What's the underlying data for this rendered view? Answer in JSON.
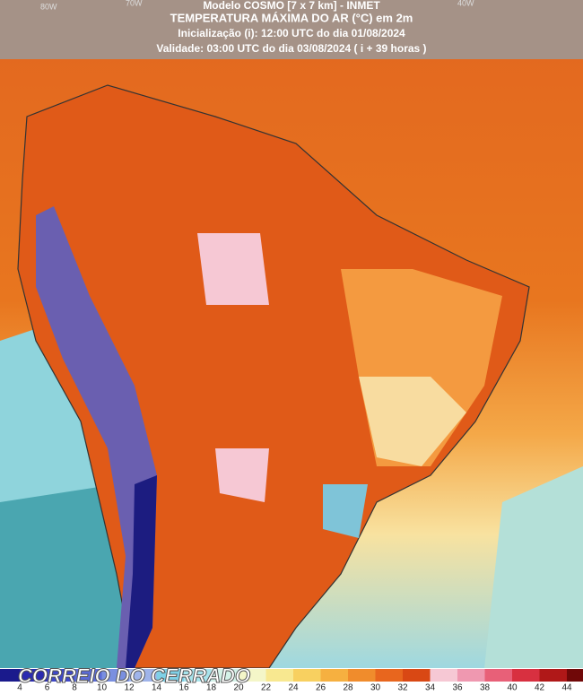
{
  "header": {
    "model": "Modelo COSMO [7 x 7 km] - INMET",
    "title": "TEMPERATURA MÁXIMA DO AR (°C) em 2m",
    "init": "Inicialização (i): 12:00 UTC do dia 01/08/2024",
    "valid": "Validade: 03:00 UTC do dia 03/08/2024 ( i + 39 horas )"
  },
  "lon_labels": [
    "80W",
    "70W",
    "40W"
  ],
  "colorbar": {
    "labels": [
      4,
      6,
      8,
      10,
      12,
      14,
      16,
      18,
      20,
      22,
      24,
      26,
      28,
      30,
      32,
      34,
      36,
      38,
      40,
      42,
      44
    ],
    "colors": [
      "#1a1a8c",
      "#2b2bb0",
      "#3f48c8",
      "#5b6bd6",
      "#7a8fe0",
      "#9fb4ea",
      "#7fd0e6",
      "#a8e4ec",
      "#d4f2e8",
      "#f4f6c8",
      "#f8e890",
      "#f8d060",
      "#f6b040",
      "#f08c2c",
      "#e8661e",
      "#d94814",
      "#f6c8d4",
      "#ef98b0",
      "#e86078",
      "#d83040",
      "#b01818",
      "#700808"
    ]
  },
  "watermark": "CORREIO DO CERRADO"
}
